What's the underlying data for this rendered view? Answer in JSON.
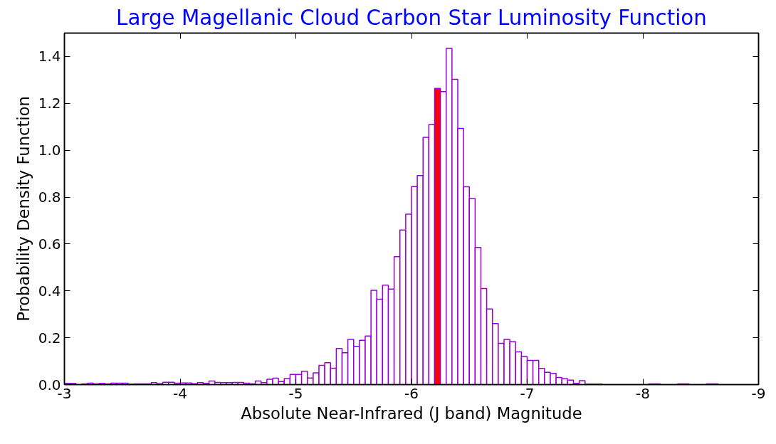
{
  "chart_data": {
    "type": "histogram",
    "title": "Large Magellanic Cloud Carbon Star Luminosity Function",
    "xlabel": "Absolute Near-Infrared (J band) Magnitude",
    "ylabel": "Probability Density Function",
    "bins": [
      -3,
      -3.05,
      -3.1,
      -3.15,
      -3.2,
      -3.25,
      -3.3,
      -3.35,
      -3.4,
      -3.45,
      -3.5,
      -3.55,
      -3.6,
      -3.65,
      -3.7,
      -3.75,
      -3.8,
      -3.85,
      -3.9,
      -3.95,
      -4,
      -4.05,
      -4.1,
      -4.15,
      -4.2,
      -4.25,
      -4.3,
      -4.35,
      -4.4,
      -4.45,
      -4.5,
      -4.55,
      -4.6,
      -4.65,
      -4.7,
      -4.75,
      -4.8,
      -4.85,
      -4.9,
      -4.95,
      -5,
      -5.05,
      -5.1,
      -5.15,
      -5.2,
      -5.25,
      -5.3,
      -5.35,
      -5.4,
      -5.45,
      -5.5,
      -5.55,
      -5.6,
      -5.65,
      -5.7,
      -5.75,
      -5.8,
      -5.85,
      -5.9,
      -5.95,
      -6,
      -6.05,
      -6.1,
      -6.15,
      -6.2,
      -6.25,
      -6.3,
      -6.35,
      -6.4,
      -6.45,
      -6.5,
      -6.55,
      -6.6,
      -6.65,
      -6.7,
      -6.75,
      -6.8,
      -6.85,
      -6.9,
      -6.95,
      -7,
      -7.05,
      -7.1,
      -7.15,
      -7.2,
      -7.25,
      -7.3,
      -7.35,
      -7.4,
      -7.45,
      -7.5,
      -7.55,
      -7.6,
      -7.65,
      -7.7,
      -7.75,
      -7.8,
      -7.85,
      -7.9,
      -7.95,
      -8,
      -8.05,
      -8.1,
      -8.15,
      -8.2,
      -8.25,
      -8.3,
      -8.35,
      -8.4,
      -8.45,
      -8.5,
      -8.55,
      -8.6,
      -8.65,
      -8.7,
      -8.75,
      -8.8,
      -8.85,
      -8.9,
      -8.95,
      -9
    ],
    "values": [
      0.005,
      0.005,
      0,
      0.003,
      0.006,
      0.003,
      0.005,
      0.003,
      0.006,
      0.006,
      0.006,
      0.002,
      0.003,
      0.003,
      0.003,
      0.008,
      0.004,
      0.01,
      0.01,
      0.006,
      0.007,
      0.007,
      0.004,
      0.008,
      0.005,
      0.015,
      0.009,
      0.008,
      0.008,
      0.009,
      0.009,
      0.006,
      0.003,
      0.015,
      0.008,
      0.023,
      0.027,
      0.013,
      0.026,
      0.043,
      0.043,
      0.057,
      0.028,
      0.05,
      0.082,
      0.093,
      0.07,
      0.154,
      0.136,
      0.193,
      0.163,
      0.189,
      0.207,
      0.402,
      0.364,
      0.424,
      0.408,
      0.546,
      0.66,
      0.727,
      0.845,
      0.892,
      1.055,
      1.11,
      1.264,
      1.25,
      1.435,
      1.303,
      1.093,
      0.844,
      0.794,
      0.585,
      0.41,
      0.323,
      0.26,
      0.176,
      0.193,
      0.183,
      0.14,
      0.119,
      0.103,
      0.103,
      0.069,
      0.052,
      0.048,
      0.03,
      0.025,
      0.019,
      0.005,
      0.017,
      0.002,
      0.002,
      0.002,
      0,
      0,
      0,
      0,
      0,
      0,
      0,
      0,
      0.003,
      0.003,
      0,
      0,
      0,
      0.003,
      0.003,
      0,
      0,
      0,
      0.003,
      0.003,
      0,
      0,
      0,
      0,
      0,
      0,
      0
    ],
    "color": "#9400d3",
    "colors": [
      "#ffffff",
      "#ffffff",
      "#ffffff",
      "#ffffff",
      "#ffffff",
      "#ffffff",
      "#ffffff",
      "#ffffff",
      "#ffffff",
      "#ffffff",
      "#ffffff",
      "#ffffff",
      "#ffffff",
      "#ffffff",
      "#ffffff",
      "#ffffff",
      "#ffffff",
      "#ffffff",
      "#ffffff",
      "#ffffff",
      "#ffffff",
      "#ffffff",
      "#ffffff",
      "#ffffff",
      "#ffffff",
      "#ffffff",
      "#ffffff",
      "#ffffff",
      "#ffffff",
      "#ffffff",
      "#ffffff",
      "#ffffff",
      "#ffffff",
      "#ffffff",
      "#ffffff",
      "#ffffff",
      "#ffffff",
      "#ffffff",
      "#ffffff",
      "#ffffff",
      "#ffffff",
      "#ffffff",
      "#ffffff",
      "#ffffff",
      "#ffffff",
      "#ffffff",
      "#ffffff",
      "#ffffff",
      "#ffffff",
      "#ffffff",
      "#ffffff",
      "#ffffff",
      "#ffffff",
      "#ffffff",
      "#ffffff",
      "#ffffff",
      "#ffffff",
      "#ffffff",
      "#ffffff",
      "#ffffff",
      "#ffffff",
      "#ffffff",
      "#ffffff",
      "#ffffff",
      "#ff0000",
      "#ffffff",
      "#ffffff",
      "#ffffff",
      "#ffffff",
      "#ffffff",
      "#ffffff",
      "#ffffff",
      "#ffffff",
      "#ffffff",
      "#ffffff",
      "#ffffff",
      "#ffffff",
      "#ffffff",
      "#ffffff",
      "#ffffff",
      "#ffffff",
      "#ffffff",
      "#ffffff",
      "#ffffff",
      "#ffffff",
      "#ffffff",
      "#ffffff",
      "#ffffff",
      "#ffffff",
      "#ffffff",
      "#ffffff",
      "#ffffff",
      "#ffffff",
      "#ffffff",
      "#ffffff",
      "#ffffff",
      "#ffffff",
      "#ffffff",
      "#ffffff",
      "#ffffff",
      "#ffffff",
      "#ffffff",
      "#ffffff",
      "#ffffff",
      "#ffffff",
      "#ffffff",
      "#ffffff",
      "#ffffff",
      "#ffffff",
      "#ffffff",
      "#ffffff",
      "#ffffff",
      "#ffffff",
      "#ffffff",
      "#ffffff",
      "#ffffff",
      "#ffffff",
      "#ffffff",
      "#ffffff",
      "#ffffff"
    ],
    "xlim": [
      -3,
      -9
    ],
    "xticks": [
      -3,
      -4,
      -5,
      -6,
      -7,
      -8,
      -9
    ],
    "ylim": [
      0,
      1.5
    ],
    "yticks": [
      {
        "value": 0,
        "label": "0.0"
      },
      {
        "value": 0.2,
        "label": "0.2"
      },
      {
        "value": 0.4,
        "label": "0.4"
      },
      {
        "value": 0.6,
        "label": "0.6"
      },
      {
        "value": 0.8,
        "label": "0.8"
      },
      {
        "value": 1,
        "label": "1.0"
      },
      {
        "value": 1.2,
        "label": "1.2"
      },
      {
        "value": 1.4,
        "label": "1.4"
      }
    ],
    "grid": false
  }
}
